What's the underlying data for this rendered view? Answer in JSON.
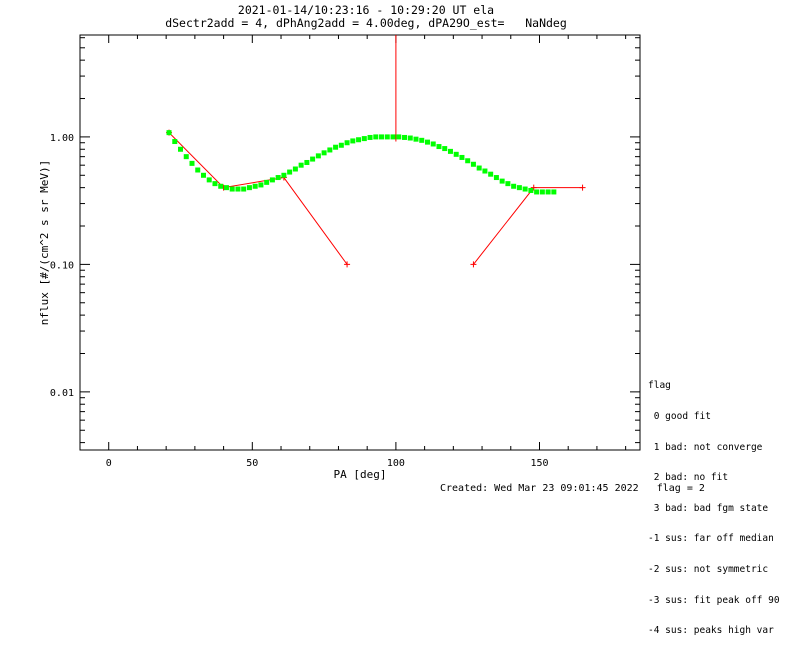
{
  "title_line1": "2021-01-14/10:23:16 - 10:29:20 UT ela",
  "title_line2": "dSectr2add = 4, dPhAng2add = 4.00deg, dPA29O_est=   NaNdeg",
  "footer": {
    "created": "Created: Wed Mar 23 09:01:45 2022",
    "flag": "flag = 2"
  },
  "legend": {
    "title": "flag",
    "items": [
      " 0 good fit",
      " 1 bad: not converge",
      " 2 bad: no fit",
      " 3 bad: bad fgm state",
      "-1 sus: far off median",
      "-2 sus: not symmetric",
      "-3 sus: fit peak off 90",
      "-4 sus: peaks high var"
    ]
  },
  "colors": {
    "data_line": "#ff0000",
    "fit": "#00ff00",
    "axes": "#000000"
  },
  "chart_data": {
    "type": "line",
    "xlabel": "PA [deg]",
    "ylabel": "nflux [#/(cm^2 s sr MeV)]",
    "xlim": [
      -10,
      185
    ],
    "ylim": [
      0.0035,
      6.3
    ],
    "yscale": "log",
    "x_ticks": [
      0,
      50,
      100,
      150
    ],
    "x_tick_labels": [
      "0",
      "50",
      "100",
      "150"
    ],
    "y_ticks": [
      0.01,
      0.1,
      1.0
    ],
    "y_tick_labels": [
      "0.01",
      "0.10",
      "1.00"
    ],
    "series": [
      {
        "style": "red-line-plus",
        "x": [
          21,
          40,
          61,
          83
        ],
        "y": [
          1.08,
          0.4,
          0.48,
          0.1
        ]
      },
      {
        "style": "red-line-plus",
        "x": [
          127,
          148,
          165
        ],
        "y": [
          0.1,
          0.4,
          0.4
        ]
      },
      {
        "style": "red-vertical",
        "x": [
          100,
          100
        ],
        "y": [
          0.92,
          6.3
        ]
      },
      {
        "style": "green-dots",
        "x": [
          21,
          23,
          25,
          27,
          29,
          31,
          33,
          35,
          37,
          39,
          41,
          43,
          45,
          47,
          49,
          51,
          53,
          55,
          57,
          59,
          61,
          63,
          65,
          67,
          69,
          71,
          73,
          75,
          77,
          79,
          81,
          83,
          85,
          87,
          89,
          91,
          93,
          95,
          97,
          99,
          101,
          103,
          105,
          107,
          109,
          111,
          113,
          115,
          117,
          119,
          121,
          123,
          125,
          127,
          129,
          131,
          133,
          135,
          137,
          139,
          141,
          143,
          145,
          147,
          149,
          151,
          153,
          155
        ],
        "y": [
          1.08,
          0.92,
          0.8,
          0.7,
          0.62,
          0.55,
          0.5,
          0.46,
          0.43,
          0.41,
          0.4,
          0.39,
          0.39,
          0.39,
          0.4,
          0.41,
          0.42,
          0.44,
          0.46,
          0.48,
          0.5,
          0.53,
          0.56,
          0.6,
          0.63,
          0.67,
          0.71,
          0.75,
          0.79,
          0.83,
          0.86,
          0.9,
          0.93,
          0.95,
          0.97,
          0.99,
          1.0,
          1.0,
          1.0,
          1.0,
          1.0,
          0.99,
          0.98,
          0.96,
          0.94,
          0.91,
          0.88,
          0.84,
          0.81,
          0.77,
          0.73,
          0.69,
          0.65,
          0.61,
          0.57,
          0.54,
          0.51,
          0.48,
          0.45,
          0.43,
          0.41,
          0.4,
          0.39,
          0.38,
          0.37,
          0.37,
          0.37,
          0.37
        ]
      }
    ]
  }
}
